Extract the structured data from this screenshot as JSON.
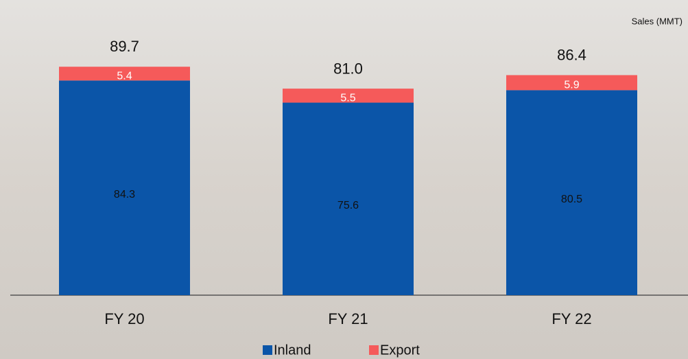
{
  "chart_data": {
    "type": "stacked-bar",
    "unit_label": "Sales (MMT)",
    "categories": [
      "FY 20",
      "FY 21",
      "FY 22"
    ],
    "series": [
      {
        "name": "Inland",
        "color": "#0b55a8",
        "values": [
          84.3,
          75.6,
          80.5
        ]
      },
      {
        "name": "Export",
        "color": "#f55a5a",
        "values": [
          5.4,
          5.5,
          5.9
        ]
      }
    ],
    "totals": [
      89.7,
      81,
      86.4
    ],
    "total_labels": [
      "89.7",
      "81.0",
      "86.4"
    ],
    "ylim": [
      0,
      100
    ]
  }
}
